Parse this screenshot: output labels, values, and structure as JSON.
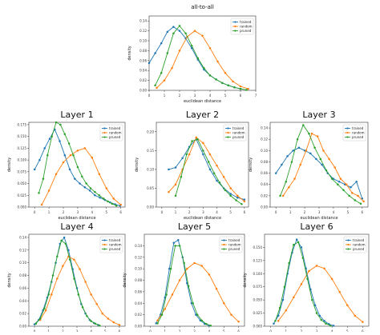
{
  "colors": {
    "trained": "#1f77b4",
    "random": "#ff7f0e",
    "pruned": "#2ca02c"
  },
  "chart_data": [
    {
      "type": "line",
      "title": "all-to-all",
      "xlabel": "euclidean distance",
      "ylabel": "density",
      "xlim": [
        0,
        7
      ],
      "ylim": [
        0,
        0.15
      ],
      "xticks": [
        "0",
        "1",
        "2",
        "3",
        "4",
        "5",
        "6",
        "7"
      ],
      "yticks": [
        "0.00",
        "0.02",
        "0.04",
        "0.06",
        "0.08",
        "0.10",
        "0.12",
        "0.14"
      ],
      "legend": "top-right",
      "series": [
        {
          "name": "trained",
          "color": "#1f77b4",
          "x": [
            0.0,
            0.4,
            0.8,
            1.2,
            1.6,
            2.0,
            2.4,
            2.8,
            3.2,
            3.6,
            4.0,
            4.4,
            4.8,
            5.2,
            5.6,
            6.0
          ],
          "y": [
            0.055,
            0.075,
            0.095,
            0.118,
            0.128,
            0.12,
            0.105,
            0.085,
            0.062,
            0.042,
            0.03,
            0.022,
            0.015,
            0.01,
            0.006,
            0.003
          ]
        },
        {
          "name": "random",
          "color": "#ff7f0e",
          "x": [
            0.5,
            1.0,
            1.5,
            2.0,
            2.5,
            3.0,
            3.5,
            4.0,
            4.5,
            5.0,
            5.5,
            6.0,
            6.5
          ],
          "y": [
            0.005,
            0.02,
            0.045,
            0.08,
            0.108,
            0.12,
            0.11,
            0.085,
            0.058,
            0.035,
            0.018,
            0.008,
            0.003
          ]
        },
        {
          "name": "pruned",
          "color": "#2ca02c",
          "x": [
            0.4,
            0.8,
            1.2,
            1.6,
            2.0,
            2.4,
            2.8,
            3.2,
            3.6,
            4.0,
            4.4,
            4.8,
            5.2,
            5.6,
            6.0,
            6.4
          ],
          "y": [
            0.01,
            0.035,
            0.075,
            0.115,
            0.13,
            0.115,
            0.09,
            0.065,
            0.045,
            0.03,
            0.022,
            0.015,
            0.01,
            0.006,
            0.003,
            0.001
          ]
        }
      ]
    },
    {
      "type": "line",
      "title": "Layer 1",
      "xlabel": "euclidean distance",
      "ylabel": "density",
      "xlim": [
        -0.4,
        6.3
      ],
      "ylim": [
        0,
        0.18
      ],
      "xticks": [
        "0",
        "1",
        "2",
        "3",
        "4",
        "5",
        "6"
      ],
      "yticks": [
        "0.000",
        "0.025",
        "0.050",
        "0.075",
        "0.100",
        "0.125",
        "0.150",
        "0.175"
      ],
      "legend": "top-right",
      "series": [
        {
          "name": "trained",
          "color": "#1f77b4",
          "x": [
            0.0,
            0.35,
            0.7,
            1.05,
            1.4,
            1.75,
            2.1,
            2.45,
            2.8,
            3.15,
            3.5,
            3.85,
            4.2,
            4.55,
            4.9,
            5.25,
            5.6,
            5.95
          ],
          "y": [
            0.08,
            0.1,
            0.125,
            0.145,
            0.165,
            0.14,
            0.11,
            0.08,
            0.06,
            0.05,
            0.042,
            0.035,
            0.025,
            0.02,
            0.015,
            0.01,
            0.006,
            0.003
          ]
        },
        {
          "name": "random",
          "color": "#ff7f0e",
          "x": [
            0.5,
            1.0,
            1.5,
            2.0,
            2.5,
            3.0,
            3.5,
            4.0,
            4.5,
            5.0,
            5.5,
            6.0
          ],
          "y": [
            0.005,
            0.035,
            0.07,
            0.095,
            0.11,
            0.12,
            0.125,
            0.105,
            0.07,
            0.04,
            0.018,
            0.005
          ]
        },
        {
          "name": "pruned",
          "color": "#2ca02c",
          "x": [
            0.3,
            0.6,
            0.9,
            1.2,
            1.5,
            1.8,
            2.1,
            2.4,
            2.7,
            3.0,
            3.3,
            3.6,
            3.9,
            4.2,
            4.5,
            4.8,
            5.1,
            5.4,
            5.7
          ],
          "y": [
            0.03,
            0.06,
            0.11,
            0.15,
            0.18,
            0.175,
            0.155,
            0.135,
            0.11,
            0.085,
            0.065,
            0.05,
            0.04,
            0.032,
            0.025,
            0.018,
            0.012,
            0.007,
            0.003
          ]
        }
      ]
    },
    {
      "type": "line",
      "title": "Layer 2",
      "xlabel": "euclidean distance",
      "ylabel": "density",
      "xlim": [
        -0.4,
        6.3
      ],
      "ylim": [
        0,
        0.225
      ],
      "xticks": [
        "0",
        "1",
        "2",
        "3",
        "4",
        "5",
        "6"
      ],
      "yticks": [
        "0.00",
        "0.05",
        "0.10",
        "0.15",
        "0.20"
      ],
      "legend": "top-right",
      "series": [
        {
          "name": "trained",
          "color": "#1f77b4",
          "x": [
            0.5,
            1.0,
            1.5,
            2.0,
            2.5,
            3.0,
            3.5,
            4.0,
            4.5,
            5.0,
            5.5,
            6.0
          ],
          "y": [
            0.1,
            0.105,
            0.13,
            0.16,
            0.18,
            0.14,
            0.1,
            0.07,
            0.05,
            0.035,
            0.025,
            0.02
          ]
        },
        {
          "name": "random",
          "color": "#ff7f0e",
          "x": [
            0.5,
            1.0,
            1.5,
            2.0,
            2.5,
            3.0,
            3.5,
            4.0,
            4.5,
            5.0,
            5.5,
            6.0
          ],
          "y": [
            0.04,
            0.06,
            0.1,
            0.14,
            0.185,
            0.17,
            0.14,
            0.11,
            0.08,
            0.05,
            0.03,
            0.015
          ]
        },
        {
          "name": "pruned",
          "color": "#2ca02c",
          "x": [
            1.0,
            1.4,
            1.8,
            2.2,
            2.6,
            3.0,
            3.4,
            3.8,
            4.2,
            4.6,
            5.0,
            5.4,
            5.8
          ],
          "y": [
            0.03,
            0.08,
            0.14,
            0.175,
            0.18,
            0.15,
            0.12,
            0.09,
            0.065,
            0.045,
            0.03,
            0.018,
            0.008
          ]
        }
      ]
    },
    {
      "type": "line",
      "title": "Layer 3",
      "xlabel": "euclidean distance",
      "ylabel": "density",
      "xlim": [
        -0.4,
        6.4
      ],
      "ylim": [
        0,
        0.15
      ],
      "xticks": [
        "0",
        "1",
        "2",
        "3",
        "4",
        "5",
        "6"
      ],
      "yticks": [
        "0.00",
        "0.02",
        "0.04",
        "0.06",
        "0.08",
        "0.10",
        "0.12",
        "0.14"
      ],
      "legend": "top-right",
      "series": [
        {
          "name": "trained",
          "color": "#1f77b4",
          "x": [
            0.0,
            0.4,
            0.8,
            1.2,
            1.6,
            2.0,
            2.4,
            2.8,
            3.2,
            3.6,
            4.0,
            4.4,
            4.8,
            5.2,
            5.6,
            6.0
          ],
          "y": [
            0.06,
            0.075,
            0.09,
            0.1,
            0.105,
            0.1,
            0.095,
            0.085,
            0.075,
            0.06,
            0.05,
            0.045,
            0.04,
            0.035,
            0.045,
            0.015
          ]
        },
        {
          "name": "random",
          "color": "#ff7f0e",
          "x": [
            0.5,
            0.9,
            1.3,
            1.7,
            2.1,
            2.5,
            2.9,
            3.3,
            3.7,
            4.1,
            4.5,
            4.9,
            5.3,
            5.7,
            6.1
          ],
          "y": [
            0.02,
            0.035,
            0.05,
            0.075,
            0.1,
            0.13,
            0.125,
            0.1,
            0.085,
            0.07,
            0.05,
            0.04,
            0.025,
            0.02,
            0.01
          ]
        },
        {
          "name": "pruned",
          "color": "#2ca02c",
          "x": [
            0.3,
            0.7,
            1.1,
            1.5,
            1.9,
            2.3,
            2.7,
            3.1,
            3.5,
            3.9,
            4.3,
            4.7,
            5.1,
            5.5,
            5.9
          ],
          "y": [
            0.02,
            0.045,
            0.08,
            0.12,
            0.145,
            0.13,
            0.105,
            0.085,
            0.065,
            0.05,
            0.04,
            0.03,
            0.02,
            0.012,
            0.006
          ]
        }
      ]
    },
    {
      "type": "line",
      "title": "Layer 4",
      "xlabel": "euclidean distance",
      "ylabel": "density",
      "xlim": [
        -0.4,
        6.4
      ],
      "ylim": [
        0,
        0.145
      ],
      "xticks": [
        "0",
        "1",
        "2",
        "3",
        "4",
        "5",
        "6"
      ],
      "yticks": [
        "0.00",
        "0.02",
        "0.04",
        "0.06",
        "0.08",
        "0.10",
        "0.12",
        "0.14"
      ],
      "legend": "top-right",
      "series": [
        {
          "name": "trained",
          "color": "#1f77b4",
          "x": [
            0.0,
            0.3,
            0.6,
            0.9,
            1.2,
            1.5,
            1.8,
            2.1,
            2.4,
            2.7,
            3.0,
            3.3,
            3.6,
            3.9,
            4.2,
            4.5
          ],
          "y": [
            0.003,
            0.01,
            0.025,
            0.045,
            0.07,
            0.1,
            0.13,
            0.14,
            0.12,
            0.09,
            0.06,
            0.035,
            0.02,
            0.01,
            0.005,
            0.002
          ]
        },
        {
          "name": "random",
          "color": "#ff7f0e",
          "x": [
            0.4,
            0.8,
            1.2,
            1.6,
            2.0,
            2.4,
            2.8,
            3.2,
            3.6,
            4.0,
            4.4,
            4.8,
            5.2,
            5.6,
            6.0
          ],
          "y": [
            0.01,
            0.025,
            0.05,
            0.075,
            0.095,
            0.11,
            0.105,
            0.09,
            0.07,
            0.05,
            0.035,
            0.02,
            0.012,
            0.006,
            0.002
          ]
        },
        {
          "name": "pruned",
          "color": "#2ca02c",
          "x": [
            0.1,
            0.4,
            0.7,
            1.0,
            1.3,
            1.6,
            1.9,
            2.2,
            2.5,
            2.8,
            3.1,
            3.4,
            3.7,
            4.0,
            4.3,
            4.6
          ],
          "y": [
            0.004,
            0.012,
            0.028,
            0.05,
            0.08,
            0.11,
            0.135,
            0.13,
            0.105,
            0.075,
            0.05,
            0.03,
            0.016,
            0.008,
            0.004,
            0.001
          ]
        }
      ]
    },
    {
      "type": "line",
      "title": "Layer 5",
      "xlabel": "euclidean distance",
      "ylabel": "density",
      "xlim": [
        -0.4,
        6.4
      ],
      "ylim": [
        0,
        0.16
      ],
      "xticks": [
        "0",
        "1",
        "2",
        "3",
        "4",
        "5",
        "6"
      ],
      "yticks": [
        "0.00",
        "0.02",
        "0.04",
        "0.06",
        "0.08",
        "0.10",
        "0.12",
        "0.14"
      ],
      "legend": "top-right",
      "series": [
        {
          "name": "trained",
          "color": "#1f77b4",
          "x": [
            0.4,
            0.7,
            1.0,
            1.3,
            1.6,
            1.9,
            2.2,
            2.5,
            2.8,
            3.1,
            3.4,
            3.7,
            4.0
          ],
          "y": [
            0.005,
            0.02,
            0.05,
            0.1,
            0.145,
            0.15,
            0.12,
            0.075,
            0.04,
            0.02,
            0.01,
            0.004,
            0.001
          ]
        },
        {
          "name": "random",
          "color": "#ff7f0e",
          "x": [
            0.5,
            1.0,
            1.5,
            2.0,
            2.5,
            3.0,
            3.5,
            4.0,
            4.5,
            5.0,
            5.5,
            6.0
          ],
          "y": [
            0.01,
            0.03,
            0.055,
            0.08,
            0.1,
            0.11,
            0.105,
            0.09,
            0.065,
            0.04,
            0.02,
            0.008
          ]
        },
        {
          "name": "pruned",
          "color": "#2ca02c",
          "x": [
            0.5,
            0.8,
            1.1,
            1.4,
            1.7,
            2.0,
            2.3,
            2.6,
            2.9,
            3.2,
            3.5,
            3.8,
            4.1
          ],
          "y": [
            0.005,
            0.02,
            0.055,
            0.1,
            0.14,
            0.14,
            0.11,
            0.07,
            0.04,
            0.02,
            0.01,
            0.004,
            0.001
          ]
        }
      ]
    },
    {
      "type": "line",
      "title": "Layer 6",
      "xlabel": "euclidean distance",
      "ylabel": "density",
      "xlim": [
        -0.4,
        6.4
      ],
      "ylim": [
        0,
        0.175
      ],
      "xticks": [
        "0",
        "1",
        "2",
        "3",
        "4",
        "5",
        "6"
      ],
      "yticks": [
        "0.000",
        "0.025",
        "0.050",
        "0.075",
        "0.100",
        "0.125",
        "0.150"
      ],
      "legend": "top-right",
      "series": [
        {
          "name": "trained",
          "color": "#1f77b4",
          "x": [
            0.2,
            0.5,
            0.8,
            1.1,
            1.4,
            1.7,
            2.0,
            2.3,
            2.6,
            2.9,
            3.2,
            3.5,
            3.8,
            4.1
          ],
          "y": [
            0.005,
            0.02,
            0.05,
            0.1,
            0.14,
            0.165,
            0.15,
            0.11,
            0.07,
            0.04,
            0.02,
            0.01,
            0.004,
            0.001
          ]
        },
        {
          "name": "random",
          "color": "#ff7f0e",
          "x": [
            0.5,
            1.0,
            1.5,
            2.0,
            2.5,
            3.0,
            3.5,
            4.0,
            4.5,
            5.0,
            5.5,
            6.0
          ],
          "y": [
            0.01,
            0.03,
            0.055,
            0.08,
            0.105,
            0.115,
            0.11,
            0.09,
            0.065,
            0.04,
            0.02,
            0.008
          ]
        },
        {
          "name": "pruned",
          "color": "#2ca02c",
          "x": [
            0.3,
            0.6,
            0.9,
            1.2,
            1.5,
            1.8,
            2.1,
            2.4,
            2.7,
            3.0,
            3.3,
            3.6,
            3.9
          ],
          "y": [
            0.01,
            0.035,
            0.075,
            0.12,
            0.155,
            0.16,
            0.13,
            0.09,
            0.05,
            0.025,
            0.012,
            0.005,
            0.001
          ]
        }
      ]
    }
  ]
}
